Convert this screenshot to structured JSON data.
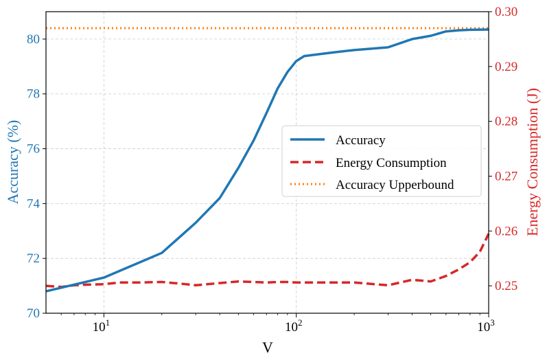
{
  "chart_data": {
    "type": "line",
    "xlabel": "V",
    "ylabel": "Accuracy (%)",
    "y2label": "Energy Consumption (J)",
    "xscale": "log",
    "xlim": [
      5,
      1000
    ],
    "ylim": [
      70,
      81
    ],
    "y2lim": [
      0.245,
      0.3
    ],
    "xticks": [
      {
        "value": 10,
        "base": "10",
        "exp": "1"
      },
      {
        "value": 100,
        "base": "10",
        "exp": "2"
      },
      {
        "value": 1000,
        "base": "10",
        "exp": "3"
      }
    ],
    "yticks": [
      70,
      72,
      74,
      76,
      78,
      80
    ],
    "y2ticks": [
      "0.25",
      "0.26",
      "0.27",
      "0.28",
      "0.29",
      "0.30"
    ],
    "legend_position": "center-right",
    "grid": true,
    "series": [
      {
        "name": "Accuracy",
        "axis": "left",
        "color": "#1f77b4",
        "style": "solid",
        "x": [
          5,
          10,
          20,
          30,
          40,
          50,
          60,
          70,
          80,
          90,
          100,
          110,
          150,
          200,
          300,
          400,
          500,
          600,
          700,
          800,
          1000
        ],
        "y": [
          70.8,
          71.3,
          72.2,
          73.3,
          74.2,
          75.3,
          76.3,
          77.3,
          78.2,
          78.8,
          79.2,
          79.38,
          79.5,
          79.6,
          79.7,
          80.0,
          80.12,
          80.28,
          80.32,
          80.34,
          80.35
        ]
      },
      {
        "name": "Energy Consumption",
        "axis": "right",
        "color": "#d62728",
        "style": "dashed",
        "x": [
          5,
          6,
          7,
          8,
          10,
          12,
          15,
          20,
          25,
          30,
          40,
          50,
          60,
          70,
          80,
          90,
          100,
          150,
          200,
          300,
          400,
          500,
          600,
          700,
          800,
          900,
          1000
        ],
        "y": [
          0.25,
          0.2498,
          0.2501,
          0.2502,
          0.2503,
          0.2506,
          0.2506,
          0.2507,
          0.2504,
          0.2501,
          0.2505,
          0.2508,
          0.2507,
          0.2506,
          0.2507,
          0.2507,
          0.2506,
          0.2506,
          0.2506,
          0.2501,
          0.2511,
          0.2508,
          0.2518,
          0.253,
          0.2543,
          0.2562,
          0.2595
        ]
      },
      {
        "name": "Accuracy Upperbound",
        "axis": "left",
        "color": "#ff7f0e",
        "style": "dotted",
        "x": [
          5,
          1000
        ],
        "y": [
          80.4,
          80.4
        ]
      }
    ]
  }
}
